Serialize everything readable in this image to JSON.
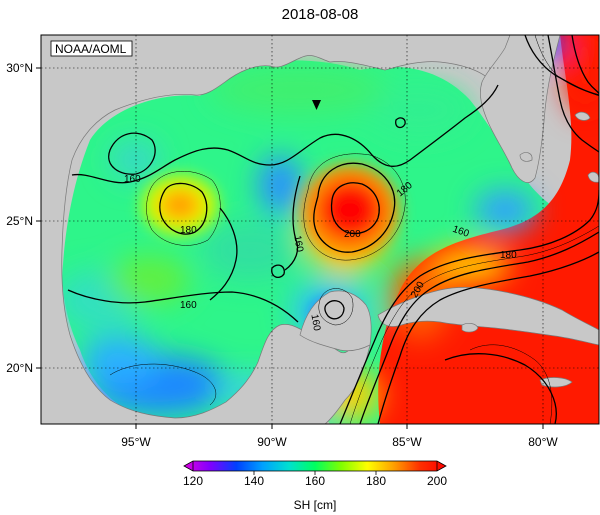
{
  "title": "2018-08-08",
  "watermark": "NOAA/AOML",
  "lon_ticks": [
    "95°W",
    "90°W",
    "85°W",
    "80°W"
  ],
  "lat_ticks": [
    "30°N",
    "25°N",
    "20°N"
  ],
  "colorbar": {
    "label": "SH [cm]",
    "ticks": [
      "120",
      "140",
      "160",
      "180",
      "200"
    ],
    "min": 120,
    "max": 200
  },
  "contour_labels": [
    {
      "name": "contour-label-160-west",
      "text": "160"
    },
    {
      "name": "contour-label-180-west-eddy",
      "text": "180"
    },
    {
      "name": "contour-label-160-center",
      "text": "160"
    },
    {
      "name": "contour-label-180-east-eddy",
      "text": "180"
    },
    {
      "name": "contour-label-200-east-eddy",
      "text": "200"
    },
    {
      "name": "contour-label-160-southwest",
      "text": "160"
    },
    {
      "name": "contour-label-160-florida-strait",
      "text": "160"
    },
    {
      "name": "contour-label-180-florida-strait",
      "text": "180"
    },
    {
      "name": "contour-label-200-caribbean",
      "text": "200"
    },
    {
      "name": "contour-label-160-campeche",
      "text": "160"
    }
  ],
  "colors": {
    "land": "#c8c8c8",
    "cmap": [
      "#e000e0",
      "#8000ff",
      "#0040ff",
      "#00a0ff",
      "#00e0d0",
      "#00ff60",
      "#80ff00",
      "#ffff00",
      "#ffa000",
      "#ff3000",
      "#ff0000"
    ]
  }
}
